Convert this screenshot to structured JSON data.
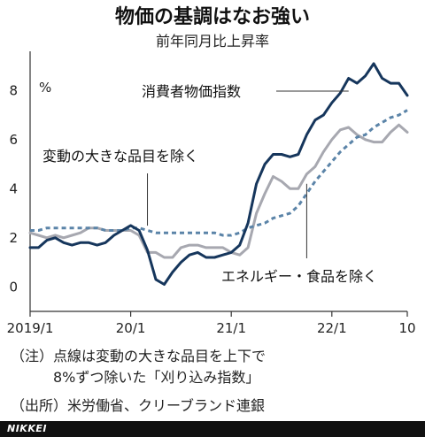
{
  "chart_data": {
    "type": "line",
    "title": "物価の基調はなお強い",
    "subtitle": "前年同月比上昇率",
    "ylabel": "%",
    "ylim": [
      -1,
      9.6
    ],
    "yticks": [
      0,
      2,
      4,
      6,
      8
    ],
    "xlim": [
      0,
      45
    ],
    "xticks": [
      {
        "x": 0,
        "label": "2019/1"
      },
      {
        "x": 12,
        "label": "20/1"
      },
      {
        "x": 24,
        "label": "21/1"
      },
      {
        "x": 36,
        "label": "22/1"
      },
      {
        "x": 45,
        "label": "10"
      }
    ],
    "series": [
      {
        "name": "消費者物価指数",
        "style": "solid",
        "color": "#16365c",
        "values": [
          1.6,
          1.6,
          1.9,
          2.0,
          1.8,
          1.7,
          1.8,
          1.8,
          1.7,
          1.8,
          2.1,
          2.3,
          2.5,
          2.3,
          1.5,
          0.3,
          0.1,
          0.6,
          1.0,
          1.3,
          1.4,
          1.2,
          1.2,
          1.3,
          1.4,
          1.7,
          2.6,
          4.2,
          5.0,
          5.4,
          5.4,
          5.3,
          5.4,
          6.2,
          6.8,
          7.0,
          7.5,
          7.9,
          8.5,
          8.3,
          8.6,
          9.1,
          8.5,
          8.3,
          8.3,
          7.8
        ]
      },
      {
        "name": "エネルギー・食品を除く",
        "style": "solid",
        "color": "#a7a8b0",
        "values": [
          2.2,
          2.1,
          2.0,
          2.1,
          2.0,
          2.1,
          2.2,
          2.4,
          2.4,
          2.3,
          2.3,
          2.3,
          2.3,
          2.1,
          1.4,
          1.4,
          1.2,
          1.2,
          1.6,
          1.7,
          1.7,
          1.6,
          1.6,
          1.6,
          1.4,
          1.3,
          1.6,
          3.0,
          3.8,
          4.5,
          4.3,
          4.0,
          4.0,
          4.6,
          4.9,
          5.5,
          6.0,
          6.4,
          6.5,
          6.2,
          6.0,
          5.9,
          5.9,
          6.3,
          6.6,
          6.3
        ]
      },
      {
        "name": "変動の大きな品目を除く",
        "style": "dashed",
        "color": "#5b84a8",
        "values": [
          2.3,
          2.3,
          2.4,
          2.4,
          2.4,
          2.4,
          2.4,
          2.4,
          2.4,
          2.3,
          2.3,
          2.3,
          2.4,
          2.4,
          2.3,
          2.2,
          2.2,
          2.2,
          2.2,
          2.2,
          2.2,
          2.2,
          2.2,
          2.1,
          2.1,
          2.2,
          2.4,
          2.5,
          2.6,
          2.8,
          2.9,
          3.0,
          3.3,
          3.8,
          4.3,
          4.7,
          5.1,
          5.5,
          5.8,
          6.1,
          6.2,
          6.5,
          6.7,
          6.9,
          7.0,
          7.2
        ]
      }
    ],
    "annotations": [
      {
        "text": "消費者物価指数",
        "series": 0
      },
      {
        "text": "変動の大きな品目を除く",
        "series": 2
      },
      {
        "text": "エネルギー・食品を除く",
        "series": 1
      }
    ],
    "notes": [
      "（注）点線は変動の大きな品目を上下で",
      "8%ずつ除いた「刈り込み指数」",
      "（出所）米労働省、クリーブランド連銀"
    ]
  },
  "brand": "NIKKEI"
}
